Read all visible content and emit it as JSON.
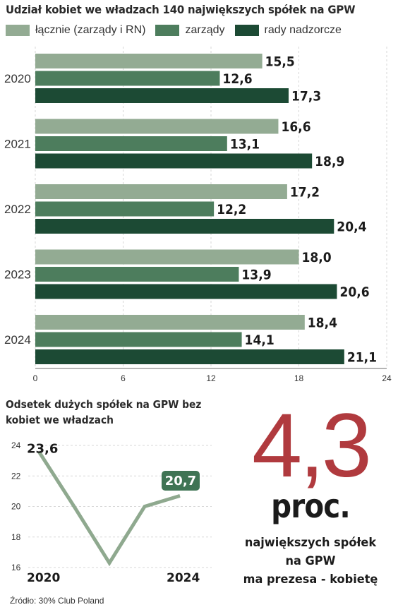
{
  "bar_section": {
    "title": "Udział kobiet we władzach 140 największych spółek na GPW",
    "legend": [
      {
        "label": "łącznie (zarządy i RN)",
        "color": "#93ab93"
      },
      {
        "label": "zarządy",
        "color": "#4d7d5d"
      },
      {
        "label": "rady nadzorcze",
        "color": "#1c4a34"
      }
    ]
  },
  "chart_data": [
    {
      "type": "bar",
      "orientation": "horizontal",
      "title": "Udział kobiet we władzach 140 największych spółek na GPW",
      "categories": [
        "2020",
        "2021",
        "2022",
        "2023",
        "2024"
      ],
      "series": [
        {
          "name": "łącznie (zarządy i RN)",
          "color": "#93ab93",
          "values": [
            15.5,
            16.6,
            17.2,
            18.0,
            18.4
          ],
          "labels": [
            "15,5",
            "16,6",
            "17,2",
            "18,0",
            "18,4"
          ]
        },
        {
          "name": "zarządy",
          "color": "#4d7d5d",
          "values": [
            12.6,
            13.1,
            12.2,
            13.9,
            14.1
          ],
          "labels": [
            "12,6",
            "13,1",
            "12,2",
            "13,9",
            "14,1"
          ]
        },
        {
          "name": "rady nadzorcze",
          "color": "#1c4a34",
          "values": [
            17.3,
            18.9,
            20.4,
            20.6,
            21.1
          ],
          "labels": [
            "17,3",
            "18,9",
            "20,4",
            "20,6",
            "21,1"
          ]
        }
      ],
      "xlim": [
        0,
        24
      ],
      "xticks": [
        0,
        6,
        12,
        18,
        24
      ],
      "grid": true,
      "legend": "top"
    },
    {
      "type": "line",
      "title": "Odsetek dużych spółek na GPW bez kobiet we władzach",
      "x": [
        2020,
        2021,
        2022,
        2023,
        2024
      ],
      "x_tick_labels": [
        "2020",
        "2024"
      ],
      "series": [
        {
          "values": [
            23.6,
            20.0,
            16.3,
            20.0,
            20.7
          ],
          "color": "#8fa98f"
        }
      ],
      "annotations": [
        {
          "x": 2020,
          "y": 23.6,
          "label": "23,6"
        },
        {
          "x": 2024,
          "y": 20.7,
          "label": "20,7",
          "highlight_color": "#3f7454"
        }
      ],
      "ylim": [
        16,
        24
      ],
      "yticks": [
        16,
        18,
        20,
        22,
        24
      ],
      "grid": true
    }
  ],
  "line_section": {
    "title": "Odsetek dużych spółek na GPW bez kobiet we władzach"
  },
  "highlight": {
    "number": "4,3",
    "unit": "proc.",
    "caption_lines": [
      "największych spółek",
      "na GPW",
      "ma prezesa - kobietę"
    ],
    "number_color": "#b03a3e"
  },
  "source": "Źródło: 30% Club Poland"
}
